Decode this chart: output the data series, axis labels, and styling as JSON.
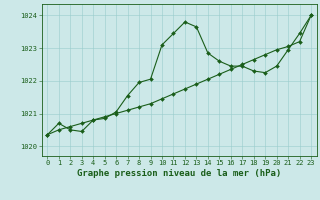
{
  "title": "Graphe pression niveau de la mer (hPa)",
  "bg_color": "#cce8e8",
  "line_color": "#1a5e1a",
  "grid_color": "#99cccc",
  "xlim": [
    -0.5,
    23.5
  ],
  "ylim": [
    1019.7,
    1024.35
  ],
  "yticks": [
    1020,
    1021,
    1022,
    1023,
    1024
  ],
  "xticks": [
    0,
    1,
    2,
    3,
    4,
    5,
    6,
    7,
    8,
    9,
    10,
    11,
    12,
    13,
    14,
    15,
    16,
    17,
    18,
    19,
    20,
    21,
    22,
    23
  ],
  "curve1_x": [
    0,
    1,
    2,
    3,
    4,
    5,
    6,
    7,
    8,
    9,
    10,
    11,
    12,
    13,
    14,
    15,
    16,
    17,
    18,
    19,
    20,
    21,
    22,
    23
  ],
  "curve1_y": [
    1020.35,
    1020.7,
    1020.5,
    1020.45,
    1020.8,
    1020.85,
    1021.05,
    1021.55,
    1021.95,
    1022.05,
    1023.1,
    1023.45,
    1023.8,
    1023.65,
    1022.85,
    1022.6,
    1022.45,
    1022.45,
    1022.3,
    1022.25,
    1022.45,
    1022.95,
    1023.45,
    1024.0
  ],
  "curve2_x": [
    0,
    1,
    2,
    3,
    4,
    5,
    6,
    7,
    8,
    9,
    10,
    11,
    12,
    13,
    14,
    15,
    16,
    17,
    18,
    19,
    20,
    21,
    22,
    23
  ],
  "curve2_y": [
    1020.35,
    1020.5,
    1020.6,
    1020.7,
    1020.8,
    1020.9,
    1021.0,
    1021.1,
    1021.2,
    1021.3,
    1021.45,
    1021.6,
    1021.75,
    1021.9,
    1022.05,
    1022.2,
    1022.35,
    1022.5,
    1022.65,
    1022.8,
    1022.95,
    1023.05,
    1023.2,
    1024.0
  ],
  "title_fontsize": 6.5,
  "tick_fontsize": 5.0
}
